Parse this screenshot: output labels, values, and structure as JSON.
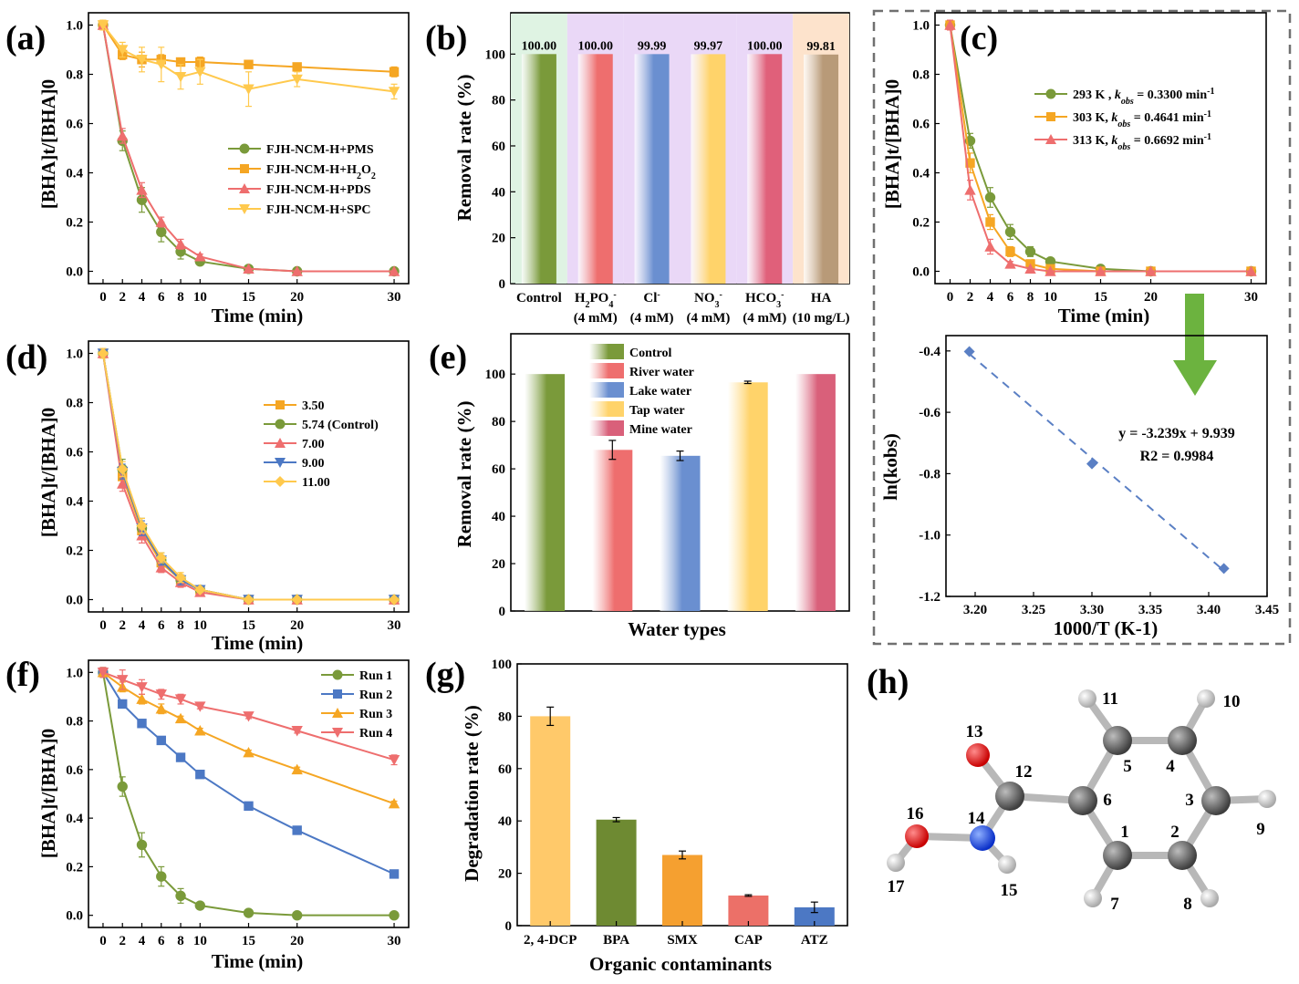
{
  "colors": {
    "green": "#7a9a3a",
    "orange": "#f5a623",
    "red": "#ee6e6e",
    "yellow": "#ffd36a",
    "blue": "#4c78c4",
    "steel": "#6a8fd0",
    "arrow": "#6cb33f"
  },
  "panels": {
    "a": {
      "label": "(a)",
      "ylabel": "[BHA]t/[BHA]0",
      "xlabel": "Time (min)",
      "chart_data": {
        "type": "line",
        "x": [
          0,
          2,
          4,
          6,
          8,
          10,
          15,
          20,
          30
        ],
        "xticks": [
          0,
          2,
          4,
          6,
          8,
          10,
          15,
          20,
          30
        ],
        "ylim": [
          -0.05,
          1.05
        ],
        "yticks": [
          "0.0",
          "0.2",
          "0.4",
          "0.6",
          "0.8",
          "1.0"
        ],
        "legend_position": "center-right",
        "series": [
          {
            "name": "FJH-NCM-H+PMS",
            "color": "#7a9a3a",
            "marker": "circle",
            "values": [
              1.0,
              0.53,
              0.29,
              0.16,
              0.08,
              0.04,
              0.01,
              0.0,
              0.0
            ],
            "err": [
              0.02,
              0.04,
              0.05,
              0.04,
              0.03,
              0.01,
              0.0,
              0.0,
              0.0
            ]
          },
          {
            "name": "FJH-NCM-H+H2O2",
            "color": "#f5a623",
            "marker": "square",
            "values": [
              1.0,
              0.88,
              0.86,
              0.86,
              0.85,
              0.85,
              0.84,
              0.83,
              0.81
            ],
            "err": [
              0.02,
              0.02,
              0.03,
              0.02,
              0.01,
              0.02,
              0.01,
              0.01,
              0.02
            ]
          },
          {
            "name": "FJH-NCM-H+PDS",
            "color": "#ee6e6e",
            "marker": "triangle-up",
            "values": [
              1.0,
              0.55,
              0.33,
              0.2,
              0.11,
              0.06,
              0.01,
              0.0,
              0.0
            ],
            "err": [
              0.02,
              0.03,
              0.03,
              0.02,
              0.02,
              0.01,
              0.0,
              0.0,
              0.0
            ]
          },
          {
            "name": "FJH-NCM-H+SPC",
            "color": "#ffc94d",
            "marker": "triangle-down",
            "values": [
              1.0,
              0.9,
              0.86,
              0.84,
              0.79,
              0.81,
              0.74,
              0.78,
              0.73
            ],
            "err": [
              0.02,
              0.03,
              0.05,
              0.07,
              0.05,
              0.05,
              0.07,
              0.03,
              0.03
            ]
          }
        ]
      }
    },
    "b": {
      "label": "(b)",
      "ylabel": "Removal rate (%)",
      "chart_data": {
        "type": "bar",
        "categories": [
          "Control",
          "H2PO4- (4 mM)",
          "Cl- (4 mM)",
          "NO3- (4 mM)",
          "HCO3- (4 mM)",
          "HA (10 mg/L)"
        ],
        "cat_line1": [
          "Control",
          "H2PO4-",
          "Cl-",
          "NO3-",
          "HCO3-",
          "HA"
        ],
        "cat_line2": [
          "",
          "(4 mM)",
          "(4 mM)",
          "(4 mM)",
          "(4 mM)",
          "(10 mg/L)"
        ],
        "values": [
          100.0,
          100.0,
          99.99,
          99.97,
          100.0,
          99.81
        ],
        "value_labels": [
          "100.00",
          "100.00",
          "99.99",
          "99.97",
          "100.00",
          "99.81"
        ],
        "ylim": [
          0,
          118
        ],
        "yticks": [
          "0",
          "20",
          "40",
          "60",
          "80",
          "100"
        ],
        "bar_colors": [
          "#7a9a3a",
          "#ee6e6e",
          "#6a8fd0",
          "#ffd36a",
          "#e0607a",
          "#b89a78"
        ],
        "bg_colors": [
          "#dff3e3",
          "#ead8f7",
          "#ead8f7",
          "#ead8f7",
          "#ead8f7",
          "#fde3cc"
        ]
      }
    },
    "c": {
      "label": "(c)",
      "ylabel": "[BHA]t/[BHA]0",
      "xlabel": "Time (min)",
      "chart_data": {
        "type": "line",
        "x": [
          0,
          2,
          4,
          6,
          8,
          10,
          15,
          20,
          30
        ],
        "xticks": [
          0,
          2,
          4,
          6,
          8,
          10,
          15,
          20,
          30
        ],
        "ylim": [
          -0.05,
          1.05
        ],
        "yticks": [
          "0.0",
          "0.2",
          "0.4",
          "0.6",
          "0.8",
          "1.0"
        ],
        "legend_position": "top-right",
        "series": [
          {
            "name": "293 K , kobs = 0.3300 min-1",
            "temp": "293 K ,",
            "kval": " = 0.3300 min",
            "color": "#7a9a3a",
            "marker": "circle",
            "values": [
              1.0,
              0.53,
              0.3,
              0.16,
              0.08,
              0.04,
              0.01,
              0.0,
              0.0
            ],
            "err": [
              0.02,
              0.03,
              0.04,
              0.03,
              0.02,
              0.01,
              0.0,
              0.0,
              0.0
            ]
          },
          {
            "name": "303 K, kobs = 0.4641 min-1",
            "temp": "303 K,",
            "kval": " = 0.4641 min",
            "color": "#f5a623",
            "marker": "square",
            "values": [
              1.0,
              0.44,
              0.2,
              0.08,
              0.03,
              0.01,
              0.0,
              0.0,
              0.0
            ],
            "err": [
              0.02,
              0.04,
              0.03,
              0.02,
              0.01,
              0.0,
              0.0,
              0.0,
              0.0
            ]
          },
          {
            "name": "313 K, kobs = 0.6692 min-1",
            "temp": "313 K,",
            "kval": " = 0.6692 min",
            "color": "#ee6e6e",
            "marker": "triangle-up",
            "values": [
              1.0,
              0.33,
              0.1,
              0.03,
              0.01,
              0.0,
              0.0,
              0.0,
              0.0
            ],
            "err": [
              0.02,
              0.04,
              0.03,
              0.01,
              0.0,
              0.0,
              0.0,
              0.0,
              0.0
            ]
          }
        ]
      }
    },
    "c_lower": {
      "ylabel": "ln(kobs)",
      "xlabel": "1000/T (K-1)",
      "equation": "y = -3.239x + 9.939",
      "r2": "R2 = 0.9984",
      "chart_data": {
        "type": "scatter",
        "x": [
          3.195,
          3.3,
          3.413
        ],
        "values": [
          -0.402,
          -0.768,
          -1.109
        ],
        "xlim": [
          3.175,
          3.45
        ],
        "ylim": [
          -1.2,
          -0.35
        ],
        "xticks": [
          "3.20",
          "3.25",
          "3.30",
          "3.35",
          "3.40",
          "3.45"
        ],
        "yticks": [
          "-0.4",
          "-0.6",
          "-0.8",
          "-1.0",
          "-1.2"
        ],
        "fit": {
          "slope": -3.239,
          "intercept": 9.939
        }
      }
    },
    "d": {
      "label": "(d)",
      "ylabel": "[BHA]t/[BHA]0",
      "xlabel": "Time (min)",
      "chart_data": {
        "type": "line",
        "x": [
          0,
          2,
          4,
          6,
          8,
          10,
          15,
          20,
          30
        ],
        "xticks": [
          0,
          2,
          4,
          6,
          8,
          10,
          15,
          20,
          30
        ],
        "ylim": [
          -0.05,
          1.05
        ],
        "yticks": [
          "0.0",
          "0.2",
          "0.4",
          "0.6",
          "0.8",
          "1.0"
        ],
        "legend_position": "center-right",
        "series": [
          {
            "name": "3.50",
            "color": "#f5a623",
            "marker": "square",
            "values": [
              1.0,
              0.5,
              0.28,
              0.15,
              0.08,
              0.04,
              0.0,
              0.0,
              0.0
            ],
            "err": [
              0.02,
              0.03,
              0.03,
              0.02,
              0.02,
              0.01,
              0.0,
              0.0,
              0.0
            ]
          },
          {
            "name": "5.74 (Control)",
            "color": "#7a9a3a",
            "marker": "circle",
            "values": [
              1.0,
              0.53,
              0.29,
              0.16,
              0.08,
              0.04,
              0.0,
              0.0,
              0.0
            ],
            "err": [
              0.02,
              0.04,
              0.04,
              0.03,
              0.02,
              0.01,
              0.0,
              0.0,
              0.0
            ]
          },
          {
            "name": "7.00",
            "color": "#ee6e6e",
            "marker": "triangle-up",
            "values": [
              1.0,
              0.47,
              0.26,
              0.13,
              0.07,
              0.03,
              0.0,
              0.0,
              0.0
            ],
            "err": [
              0.02,
              0.03,
              0.03,
              0.02,
              0.02,
              0.01,
              0.0,
              0.0,
              0.0
            ]
          },
          {
            "name": "9.00",
            "color": "#4c78c4",
            "marker": "triangle-down",
            "values": [
              1.0,
              0.52,
              0.29,
              0.16,
              0.08,
              0.04,
              0.0,
              0.0,
              0.0
            ],
            "err": [
              0.02,
              0.03,
              0.03,
              0.02,
              0.02,
              0.01,
              0.0,
              0.0,
              0.0
            ]
          },
          {
            "name": "11.00",
            "color": "#ffc94d",
            "marker": "diamond",
            "values": [
              1.0,
              0.53,
              0.3,
              0.17,
              0.09,
              0.04,
              0.0,
              0.0,
              0.0
            ],
            "err": [
              0.02,
              0.03,
              0.03,
              0.02,
              0.02,
              0.01,
              0.0,
              0.0,
              0.0
            ]
          }
        ]
      }
    },
    "e": {
      "label": "(e)",
      "ylabel": "Removal rate (%)",
      "xlabel": "Water types",
      "chart_data": {
        "type": "bar",
        "categories": [
          "Control",
          "River water",
          "Lake water",
          "Tap water",
          "Mine water"
        ],
        "values": [
          100.0,
          68.0,
          65.5,
          96.5,
          100.0
        ],
        "err": [
          0,
          4.0,
          2.0,
          0.5,
          0
        ],
        "ylim": [
          0,
          117
        ],
        "yticks": [
          "0",
          "20",
          "40",
          "60",
          "80",
          "100"
        ],
        "legend_position": "top",
        "bar_colors": [
          "#7a9a3a",
          "#ee6e6e",
          "#6a8fd0",
          "#ffd36a",
          "#d9607a"
        ]
      }
    },
    "f": {
      "label": "(f)",
      "ylabel": "[BHA]t/[BHA]0",
      "xlabel": "Time (min)",
      "chart_data": {
        "type": "line",
        "x": [
          0,
          2,
          4,
          6,
          8,
          10,
          15,
          20,
          30
        ],
        "xticks": [
          0,
          2,
          4,
          6,
          8,
          10,
          15,
          20,
          30
        ],
        "ylim": [
          -0.05,
          1.05
        ],
        "yticks": [
          "0.0",
          "0.2",
          "0.4",
          "0.6",
          "0.8",
          "1.0"
        ],
        "legend_position": "top-right",
        "series": [
          {
            "name": "Run 1",
            "color": "#7a9a3a",
            "marker": "circle",
            "values": [
              1.0,
              0.53,
              0.29,
              0.16,
              0.08,
              0.04,
              0.01,
              0.0,
              0.0
            ],
            "err": [
              0.02,
              0.04,
              0.05,
              0.04,
              0.03,
              0.01,
              0.0,
              0.0,
              0.0
            ]
          },
          {
            "name": "Run 2",
            "color": "#4c78c4",
            "marker": "square",
            "values": [
              1.0,
              0.87,
              0.79,
              0.72,
              0.65,
              0.58,
              0.45,
              0.35,
              0.17
            ],
            "err": [
              0.02,
              0.01,
              0.01,
              0.01,
              0.01,
              0.01,
              0.01,
              0.01,
              0.01
            ]
          },
          {
            "name": "Run 3",
            "color": "#f5a623",
            "marker": "triangle-up",
            "values": [
              1.0,
              0.94,
              0.89,
              0.85,
              0.81,
              0.76,
              0.67,
              0.6,
              0.46
            ],
            "err": [
              0.02,
              0.02,
              0.02,
              0.02,
              0.01,
              0.01,
              0.01,
              0.01,
              0.01
            ]
          },
          {
            "name": "Run 4",
            "color": "#ee6e6e",
            "marker": "triangle-down",
            "values": [
              1.0,
              0.97,
              0.94,
              0.91,
              0.89,
              0.86,
              0.82,
              0.76,
              0.64
            ],
            "err": [
              0.02,
              0.04,
              0.03,
              0.02,
              0.02,
              0.01,
              0.01,
              0.01,
              0.02
            ]
          }
        ]
      }
    },
    "g": {
      "label": "(g)",
      "ylabel": "Degradation rate (%)",
      "xlabel": "Organic contaminants",
      "chart_data": {
        "type": "bar",
        "categories": [
          "2, 4-DCP",
          "BPA",
          "SMX",
          "CAP",
          "ATZ"
        ],
        "values": [
          80.0,
          40.5,
          27.0,
          11.5,
          7.0
        ],
        "err": [
          3.5,
          0.8,
          1.5,
          0.3,
          2.0
        ],
        "ylim": [
          0,
          100
        ],
        "yticks": [
          "0",
          "20",
          "40",
          "60",
          "80",
          "100"
        ],
        "bar_colors": [
          "#ffc96a",
          "#6e8a32",
          "#f5a030",
          "#ec7068",
          "#4c78c4"
        ]
      }
    },
    "h": {
      "label": "(h)",
      "atoms": [
        "1",
        "2",
        "3",
        "4",
        "5",
        "6",
        "7",
        "8",
        "9",
        "10",
        "11",
        "12",
        "13",
        "14",
        "15",
        "16",
        "17"
      ]
    }
  }
}
